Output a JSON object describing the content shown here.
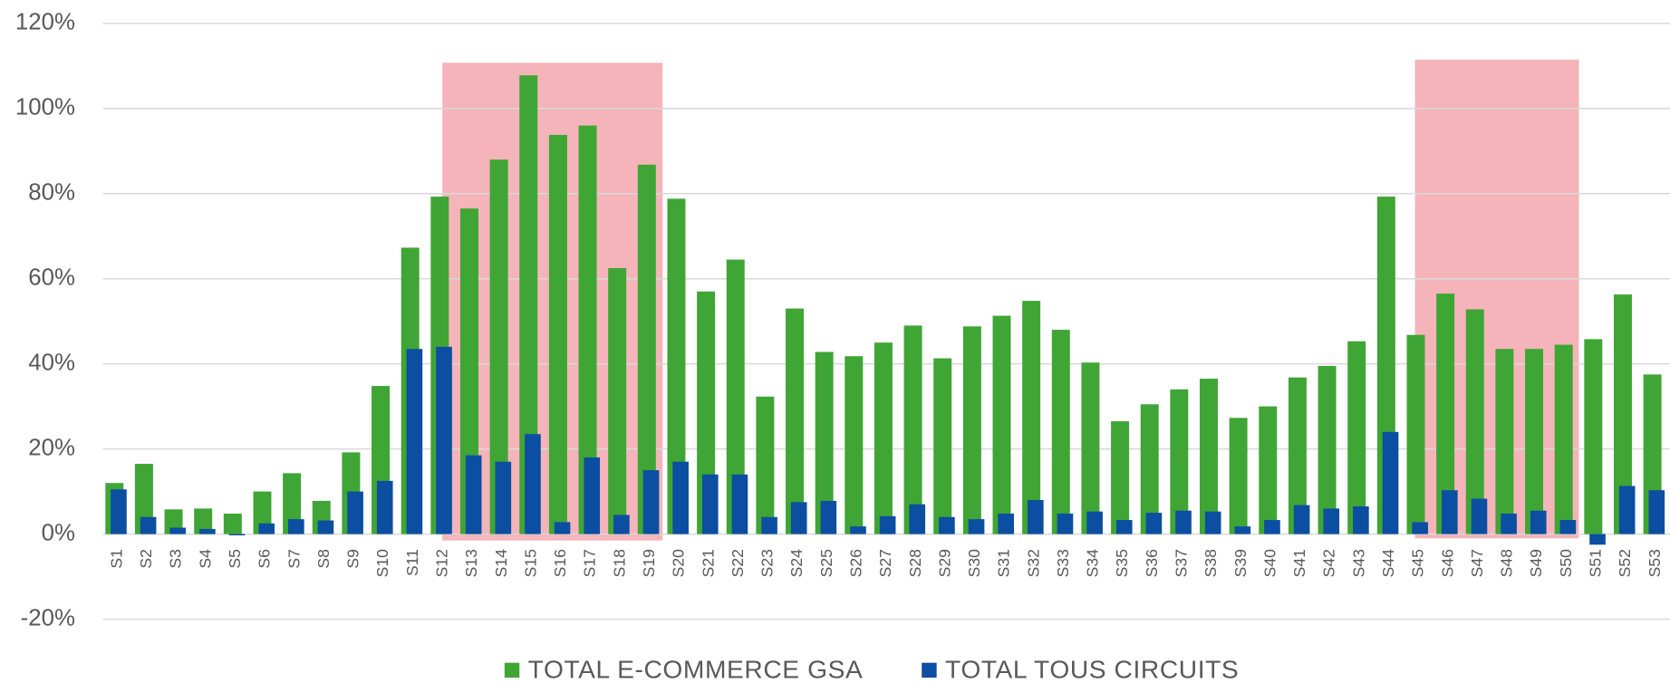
{
  "chart_data": {
    "type": "bar",
    "categories": [
      "S1",
      "S2",
      "S3",
      "S4",
      "S5",
      "S6",
      "S7",
      "S8",
      "S9",
      "S10",
      "S11",
      "S12",
      "S13",
      "S14",
      "S15",
      "S16",
      "S17",
      "S18",
      "S19",
      "S20",
      "S21",
      "S22",
      "S23",
      "S24",
      "S25",
      "S26",
      "S27",
      "S28",
      "S29",
      "S30",
      "S31",
      "S32",
      "S33",
      "S34",
      "S35",
      "S36",
      "S37",
      "S38",
      "S39",
      "S40",
      "S41",
      "S42",
      "S43",
      "S44",
      "S45",
      "S46",
      "S47",
      "S48",
      "S49",
      "S50",
      "S51",
      "S52",
      "S53"
    ],
    "series": [
      {
        "name": "TOTAL E-COMMERCE GSA",
        "color": "#3fa535",
        "values": [
          12,
          16.5,
          5.8,
          6,
          4.8,
          10,
          14.3,
          7.8,
          19.2,
          34.8,
          67.3,
          79.3,
          76.5,
          88,
          107.8,
          93.8,
          96,
          62.5,
          86.8,
          78.8,
          57,
          64.5,
          32.3,
          53,
          42.8,
          41.8,
          45,
          49,
          41.3,
          48.8,
          51.3,
          54.8,
          48,
          40.3,
          26.5,
          30.5,
          34,
          36.5,
          27.3,
          30,
          36.8,
          39.5,
          45.3,
          79.3,
          46.8,
          56.5,
          52.8,
          43.5,
          43.5,
          44.5,
          45.8,
          56.3,
          37.5
        ]
      },
      {
        "name": "TOTAL TOUS CIRCUITS",
        "color": "#0b4ea2",
        "values": [
          10.5,
          4,
          1.5,
          1.2,
          -0.3,
          2.5,
          3.5,
          3.2,
          10,
          12.5,
          43.5,
          44,
          18.5,
          17,
          23.5,
          2.8,
          18,
          4.5,
          15,
          17,
          14,
          14,
          4,
          7.5,
          7.8,
          1.8,
          4.2,
          7,
          4,
          3.5,
          4.8,
          8,
          4.8,
          5.3,
          3.3,
          5,
          5.5,
          5.3,
          1.8,
          3.3,
          6.8,
          6,
          6.5,
          24,
          2.8,
          10.3,
          8.3,
          4.8,
          5.5,
          3.3,
          -2.5,
          11.3,
          10.3
        ]
      }
    ],
    "ylim": [
      -20,
      120
    ],
    "yticks": [
      {
        "value": -20,
        "label": "-20%"
      },
      {
        "value": 0,
        "label": "0%"
      },
      {
        "value": 20,
        "label": "20%"
      },
      {
        "value": 40,
        "label": "40%"
      },
      {
        "value": 60,
        "label": "60%"
      },
      {
        "value": 80,
        "label": "80%"
      },
      {
        "value": 100,
        "label": "100%"
      },
      {
        "value": 120,
        "label": "120%"
      }
    ],
    "grid": true,
    "legend": "bottom"
  }
}
